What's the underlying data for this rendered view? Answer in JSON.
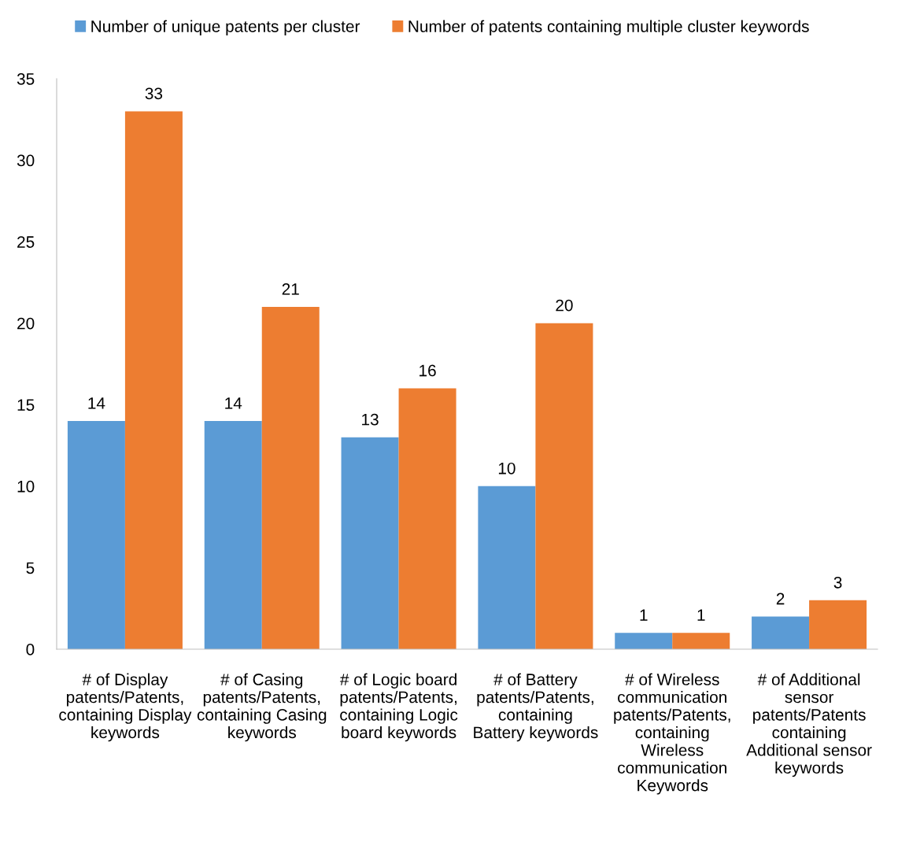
{
  "chart_data": {
    "type": "bar",
    "categories": [
      "# of Display\npatents/Patents,\ncontaining Display\nkeywords",
      "# of Casing\npatents/Patents,\ncontaining Casing\nkeywords",
      "# of Logic board\npatents/Patents,\ncontaining Logic\nboard keywords",
      "# of Battery\npatents/Patents,\ncontaining\nBattery keywords",
      "# of Wireless\ncommunication\npatents/Patents,\ncontaining\nWireless\ncommunication\nKeywords",
      "# of Additional\nsensor\npatents/Patents\ncontaining\nAdditional sensor\nkeywords"
    ],
    "series": [
      {
        "name": "Number of unique patents per cluster",
        "color": "#5b9bd5",
        "values": [
          14,
          14,
          13,
          10,
          1,
          2
        ]
      },
      {
        "name": "Number of patents containing multiple cluster keywords",
        "color": "#ed7d31",
        "values": [
          33,
          21,
          16,
          20,
          1,
          3
        ]
      }
    ],
    "ylim": [
      0,
      35
    ],
    "yticks": [
      0,
      5,
      10,
      15,
      20,
      25,
      30,
      35
    ],
    "grid": false,
    "legend": "top",
    "data_labels": true
  }
}
